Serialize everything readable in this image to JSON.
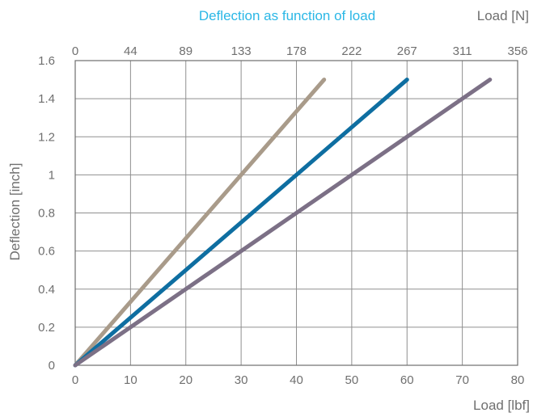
{
  "chart_data": {
    "type": "line",
    "title": "Deflection as function of load",
    "xlabel": "Load [lbf]",
    "ylabel": "Deflection [inch]",
    "secondary_xlabel": "Load [N]",
    "xlim": [
      0,
      80
    ],
    "ylim": [
      0,
      1.6
    ],
    "x_ticks": [
      "0",
      "10",
      "20",
      "30",
      "40",
      "50",
      "60",
      "70",
      "80"
    ],
    "top_x_ticks": [
      "0",
      "44",
      "89",
      "133",
      "178",
      "222",
      "267",
      "311",
      "356"
    ],
    "y_ticks": [
      "0",
      "0.2",
      "0.4",
      "0.6",
      "0.8",
      "1",
      "1.2",
      "1.4",
      "1.6"
    ],
    "grid": true,
    "series": [
      {
        "color": "#a99b8a",
        "points": [
          [
            0,
            0
          ],
          [
            45,
            1.5
          ]
        ]
      },
      {
        "color": "#0e6ea1",
        "points": [
          [
            0,
            0
          ],
          [
            60,
            1.5
          ]
        ]
      },
      {
        "color": "#7c7086",
        "points": [
          [
            0,
            0
          ],
          [
            75,
            1.5
          ]
        ]
      }
    ]
  }
}
